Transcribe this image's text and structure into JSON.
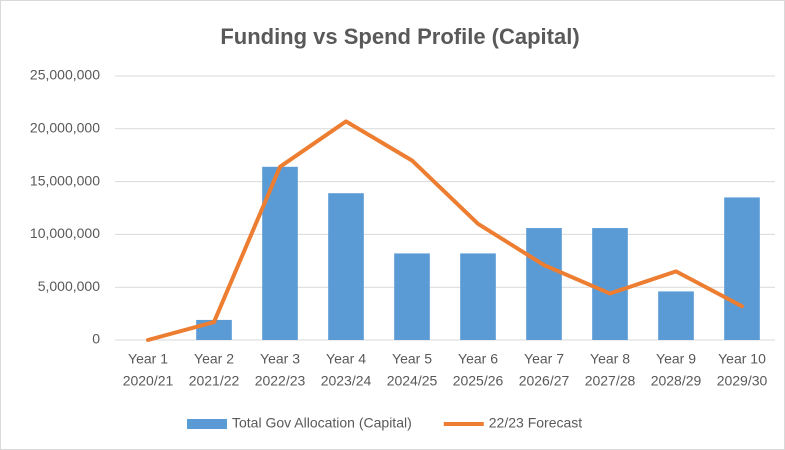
{
  "chart_data": {
    "type": "bar_line",
    "title": "Funding vs Spend Profile (Capital)",
    "categories": [
      [
        "Year 1",
        "2020/21"
      ],
      [
        "Year 2",
        "2021/22"
      ],
      [
        "Year 3",
        "2022/23"
      ],
      [
        "Year 4",
        "2023/24"
      ],
      [
        "Year 5",
        "2024/25"
      ],
      [
        "Year 6",
        "2025/26"
      ],
      [
        "Year 7",
        "2026/27"
      ],
      [
        "Year 8",
        "2027/28"
      ],
      [
        "Year 9",
        "2028/29"
      ],
      [
        "Year 10",
        "2029/30"
      ]
    ],
    "series": [
      {
        "name": "Total Gov Allocation (Capital)",
        "type": "bar",
        "color": "#5b9bd5",
        "values": [
          0,
          1900000,
          16400000,
          13900000,
          8200000,
          8200000,
          10600000,
          10600000,
          4600000,
          13500000
        ]
      },
      {
        "name": "22/23 Forecast",
        "type": "line",
        "color": "#ed7d31",
        "values": [
          0,
          1700000,
          16400000,
          20700000,
          17000000,
          11000000,
          7100000,
          4400000,
          6500000,
          3200000
        ]
      }
    ],
    "ylim": [
      0,
      25000000
    ],
    "yticks": [
      0,
      {
        "value": 5000000,
        "label": "5,000,000"
      },
      {
        "value": 10000000,
        "label": "10,000,000"
      },
      {
        "value": 15000000,
        "label": "15,000,000"
      },
      {
        "value": 20000000,
        "label": "20,000,000"
      },
      {
        "value": 25000000,
        "label": "25,000,000"
      }
    ],
    "grid": true,
    "legend": "bottom"
  }
}
